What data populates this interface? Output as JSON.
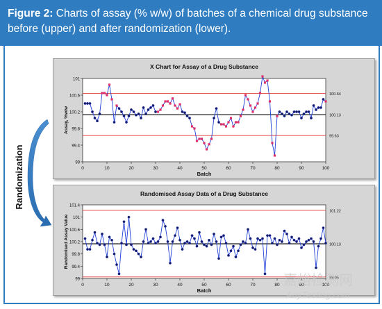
{
  "caption": {
    "figure_label": "Figure 2:",
    "text": "Charts of assay (% w/w) of batches of a chemical drug substance before (upper) and after randomization (lower)."
  },
  "side_label": "Randomization",
  "watermark": {
    "line1": "嘉峪检测网",
    "line2": "AnyTesting.com"
  },
  "colors": {
    "header": "#2f7dc0",
    "data_line": "#1f3fd6",
    "limit_line": "#e43a3a",
    "center_line": "#000000",
    "point_fill": "#1b1b5a",
    "flag_point": "#e0306a",
    "panel_bg": "#d6d6d6"
  },
  "chart_data": [
    {
      "type": "line",
      "title": "X Chart for Assay of a Drug Substance",
      "xlabel": "Batch",
      "ylabel": "Assay, %w/w",
      "xlim": [
        0,
        100
      ],
      "ylim": [
        99,
        101
      ],
      "xticks": [
        "0",
        "10",
        "20",
        "30",
        "40",
        "50",
        "60",
        "70",
        "80",
        "90",
        "100"
      ],
      "yticks": [
        "99",
        "99.4",
        "99.8",
        "100.2",
        "100.6",
        "101"
      ],
      "limits": {
        "ucl": "100.64",
        "center": "100.13",
        "lcl": "99.63",
        "ucl_value": 100.64,
        "center_value": 100.13,
        "lcl_value": 99.63
      },
      "x": [
        1,
        2,
        3,
        4,
        5,
        6,
        7,
        8,
        9,
        10,
        11,
        12,
        13,
        14,
        15,
        16,
        17,
        18,
        19,
        20,
        21,
        22,
        23,
        24,
        25,
        26,
        27,
        28,
        29,
        30,
        31,
        32,
        33,
        34,
        35,
        36,
        37,
        38,
        39,
        40,
        41,
        42,
        43,
        44,
        45,
        46,
        47,
        48,
        49,
        50,
        51,
        52,
        53,
        54,
        55,
        56,
        57,
        58,
        59,
        60,
        61,
        62,
        63,
        64,
        65,
        66,
        67,
        68,
        69,
        70,
        71,
        72,
        73,
        74,
        75,
        76,
        77,
        78,
        79,
        80,
        81,
        82,
        83,
        84,
        85,
        86,
        87,
        88,
        89,
        90,
        91,
        92,
        93,
        94,
        95,
        96,
        97,
        98,
        99,
        100
      ],
      "values": [
        100.4,
        100.4,
        100.4,
        100.2,
        100.05,
        99.98,
        100.15,
        100.65,
        100.65,
        100.6,
        100.85,
        100.5,
        99.95,
        100.35,
        100.28,
        100.2,
        100.1,
        99.95,
        100.1,
        100.25,
        100.2,
        100.12,
        100.15,
        100.05,
        100.3,
        100.15,
        100.25,
        100.3,
        100.35,
        100.2,
        100.2,
        100.25,
        100.35,
        100.45,
        100.45,
        100.4,
        100.52,
        100.35,
        100.28,
        100.38,
        100.2,
        100.18,
        100.1,
        100.05,
        99.85,
        99.8,
        99.5,
        99.55,
        99.55,
        99.45,
        99.3,
        99.42,
        99.55,
        100.05,
        100.28,
        99.95,
        99.9,
        99.9,
        99.85,
        99.95,
        100.05,
        99.85,
        99.95,
        99.95,
        100.1,
        100.25,
        100.6,
        100.5,
        100.35,
        100.2,
        100.3,
        100.4,
        100.65,
        101.05,
        100.9,
        100.95,
        100.45,
        99.45,
        99.15,
        100.1,
        100.2,
        100.15,
        100.1,
        100.2,
        100.15,
        100.12,
        100.2,
        100.2,
        100.2,
        100.05,
        100.15,
        100.2,
        100.2,
        100.05,
        100.35,
        100.25,
        100.3,
        100.3,
        100.5,
        100.45
      ],
      "flagged_points": [
        8,
        9,
        10,
        11,
        12,
        14,
        31,
        32,
        33,
        34,
        35,
        36,
        37,
        38,
        39,
        40,
        45,
        46,
        47,
        48,
        49,
        50,
        51,
        52,
        53,
        57,
        58,
        59,
        60,
        61,
        62,
        63,
        64,
        65,
        66,
        67,
        68,
        69,
        70,
        71,
        72,
        73,
        74,
        75,
        76,
        77,
        78,
        79,
        80,
        100
      ]
    },
    {
      "type": "line",
      "title": "Randomised Assay Data of a Drug Substance",
      "xlabel": "Batch",
      "ylabel": "Randomised Assay Value",
      "xlim": [
        0,
        100
      ],
      "ylim": [
        99,
        101.4
      ],
      "xticks": [
        "0",
        "10",
        "20",
        "30",
        "40",
        "50",
        "60",
        "70",
        "80",
        "90",
        "100"
      ],
      "yticks": [
        "99",
        "99.4",
        "99.8",
        "100.2",
        "100.6",
        "101",
        "101.4"
      ],
      "limits": {
        "ucl": "101.22",
        "center": "100.13",
        "lcl": "99.05",
        "ucl_value": 101.22,
        "center_value": 100.13,
        "lcl_value": 99.05
      },
      "x": [
        1,
        2,
        3,
        4,
        5,
        6,
        7,
        8,
        9,
        10,
        11,
        12,
        13,
        14,
        15,
        16,
        17,
        18,
        19,
        20,
        21,
        22,
        23,
        24,
        25,
        26,
        27,
        28,
        29,
        30,
        31,
        32,
        33,
        34,
        35,
        36,
        37,
        38,
        39,
        40,
        41,
        42,
        43,
        44,
        45,
        46,
        47,
        48,
        49,
        50,
        51,
        52,
        53,
        54,
        55,
        56,
        57,
        58,
        59,
        60,
        61,
        62,
        63,
        64,
        65,
        66,
        67,
        68,
        69,
        70,
        71,
        72,
        73,
        74,
        75,
        76,
        77,
        78,
        79,
        80,
        81,
        82,
        83,
        84,
        85,
        86,
        87,
        88,
        89,
        90,
        91,
        92,
        93,
        94,
        95,
        96,
        97,
        98,
        99,
        100
      ],
      "values": [
        100.3,
        99.95,
        99.95,
        100.25,
        100.5,
        100.15,
        100.1,
        100.45,
        100.1,
        99.7,
        100.35,
        100.25,
        99.8,
        99.45,
        99.15,
        100.15,
        100.85,
        100.1,
        101.0,
        100.1,
        99.95,
        99.9,
        99.8,
        99.7,
        100.2,
        100.6,
        100.15,
        100.2,
        100.3,
        100.15,
        100.2,
        100.35,
        100.9,
        100.7,
        100.2,
        99.5,
        100.2,
        100.4,
        100.65,
        100.25,
        99.95,
        100.15,
        100.2,
        100.15,
        100.4,
        100.3,
        100.05,
        100.5,
        100.2,
        100.1,
        100.05,
        100.25,
        100.1,
        100.45,
        100.2,
        99.65,
        100.35,
        100.4,
        100.15,
        99.75,
        99.9,
        100.05,
        99.7,
        99.9,
        100.1,
        100.2,
        100.15,
        100.6,
        100.3,
        100.0,
        99.95,
        100.3,
        100.25,
        100.3,
        99.15,
        100.4,
        100.4,
        100.15,
        100.3,
        100.1,
        100.25,
        100.2,
        100.55,
        100.45,
        100.15,
        100.35,
        100.25,
        100.2,
        100.3,
        100.0,
        100.1,
        100.2,
        100.25,
        100.3,
        100.2,
        99.35,
        100.05,
        100.3,
        100.65,
        100.15
      ]
    }
  ]
}
